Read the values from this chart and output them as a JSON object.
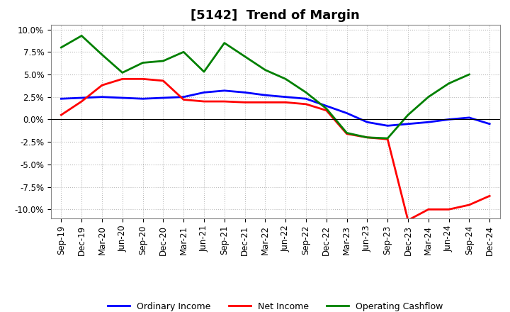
{
  "title": "[5142]  Trend of Margin",
  "x_labels": [
    "Sep-19",
    "Dec-19",
    "Mar-20",
    "Jun-20",
    "Sep-20",
    "Dec-20",
    "Mar-21",
    "Jun-21",
    "Sep-21",
    "Dec-21",
    "Mar-22",
    "Jun-22",
    "Sep-22",
    "Dec-22",
    "Mar-23",
    "Jun-23",
    "Sep-23",
    "Dec-23",
    "Mar-24",
    "Jun-24",
    "Sep-24",
    "Dec-24"
  ],
  "ordinary_income": [
    2.3,
    2.4,
    2.5,
    2.4,
    2.3,
    2.4,
    2.5,
    3.0,
    3.2,
    3.0,
    2.7,
    2.5,
    2.3,
    1.5,
    0.7,
    -0.3,
    -0.7,
    -0.5,
    -0.3,
    0.0,
    0.2,
    -0.5
  ],
  "net_income": [
    0.5,
    2.0,
    3.8,
    4.5,
    4.5,
    4.3,
    2.2,
    2.0,
    2.0,
    1.9,
    1.9,
    1.9,
    1.7,
    1.0,
    -1.6,
    -2.0,
    -2.2,
    -11.2,
    -10.0,
    -10.0,
    -9.5,
    -8.5
  ],
  "operating_cashflow": [
    8.0,
    9.3,
    7.2,
    5.2,
    6.3,
    6.5,
    7.5,
    5.3,
    8.5,
    7.0,
    5.5,
    4.5,
    3.0,
    1.2,
    -1.5,
    -2.0,
    -2.1,
    0.5,
    2.5,
    4.0,
    5.0,
    null
  ],
  "ylim": [
    -11.0,
    10.5
  ],
  "yticks": [
    -10.0,
    -7.5,
    -5.0,
    -2.5,
    0.0,
    2.5,
    5.0,
    7.5,
    10.0
  ],
  "line_colors": {
    "ordinary_income": "#0000FF",
    "net_income": "#FF0000",
    "operating_cashflow": "#008000"
  },
  "legend_labels": [
    "Ordinary Income",
    "Net Income",
    "Operating Cashflow"
  ],
  "background_color": "#FFFFFF",
  "grid_color": "#BBBBBB",
  "title_fontsize": 13,
  "tick_fontsize": 8.5,
  "legend_fontsize": 9
}
